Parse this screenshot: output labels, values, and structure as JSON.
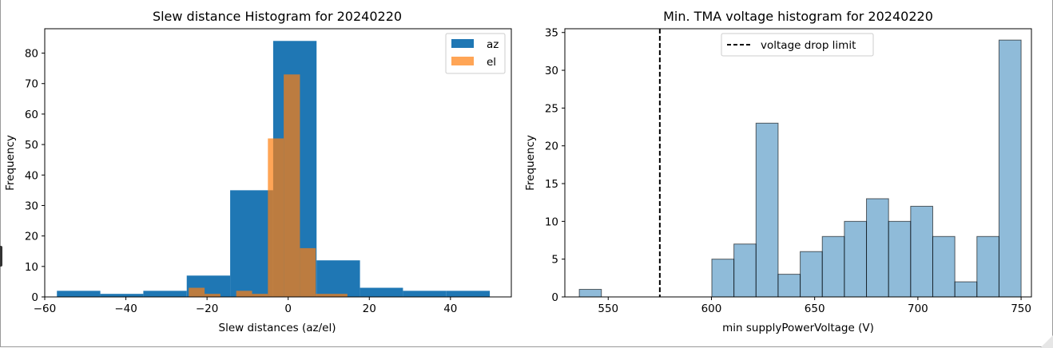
{
  "chart_data": [
    {
      "type": "bar",
      "title": "Slew distance Histogram for 20240220",
      "xlabel": "Slew distances (az/el)",
      "ylabel": "Frequency",
      "xlim": [
        -60,
        55
      ],
      "ylim": [
        0,
        88
      ],
      "xticks": [
        -60,
        -40,
        -20,
        0,
        20,
        40
      ],
      "yticks": [
        0,
        10,
        20,
        30,
        40,
        50,
        60,
        70,
        80
      ],
      "legend": "top-right",
      "series": [
        {
          "name": "az",
          "color": "#1f77b4",
          "opacity": 1,
          "bins": [
            {
              "x0": -57.0,
              "x1": -46.3,
              "y": 2
            },
            {
              "x0": -46.3,
              "x1": -35.7,
              "y": 1
            },
            {
              "x0": -35.7,
              "x1": -25.0,
              "y": 2
            },
            {
              "x0": -25.0,
              "x1": -14.3,
              "y": 7
            },
            {
              "x0": -14.3,
              "x1": -3.7,
              "y": 35
            },
            {
              "x0": -3.7,
              "x1": 7.0,
              "y": 84
            },
            {
              "x0": 7.0,
              "x1": 17.7,
              "y": 12
            },
            {
              "x0": 17.7,
              "x1": 28.3,
              "y": 3
            },
            {
              "x0": 28.3,
              "x1": 39.0,
              "y": 2
            },
            {
              "x0": 39.0,
              "x1": 49.7,
              "y": 2
            }
          ]
        },
        {
          "name": "el",
          "color": "#ff7f0e",
          "opacity": 0.7,
          "bins": [
            {
              "x0": -24.5,
              "x1": -20.6,
              "y": 3
            },
            {
              "x0": -20.6,
              "x1": -16.7,
              "y": 1
            },
            {
              "x0": -16.7,
              "x1": -12.8,
              "y": 0
            },
            {
              "x0": -12.8,
              "x1": -8.9,
              "y": 2
            },
            {
              "x0": -8.9,
              "x1": -5.0,
              "y": 1
            },
            {
              "x0": -5.0,
              "x1": -1.1,
              "y": 52
            },
            {
              "x0": -1.1,
              "x1": 2.9,
              "y": 73
            },
            {
              "x0": 2.9,
              "x1": 6.8,
              "y": 16
            },
            {
              "x0": 6.8,
              "x1": 10.7,
              "y": 1
            },
            {
              "x0": 10.7,
              "x1": 14.6,
              "y": 1
            }
          ]
        }
      ]
    },
    {
      "type": "bar",
      "title": "Min. TMA voltage histogram for 20240220",
      "xlabel": "min supplyPowerVoltage (V)",
      "ylabel": "Frequency",
      "xlim": [
        529,
        755
      ],
      "ylim": [
        0,
        35.5
      ],
      "xticks": [
        550,
        600,
        650,
        700,
        750
      ],
      "yticks": [
        0,
        5,
        10,
        15,
        20,
        25,
        30,
        35
      ],
      "legend": "top-center",
      "series": [
        {
          "name": "",
          "color": "#1f77b4",
          "opacity": 0.5,
          "edgecolor": "#000000",
          "bins": [
            {
              "x0": 536.0,
              "x1": 546.7,
              "y": 1
            },
            {
              "x0": 546.7,
              "x1": 557.4,
              "y": 0
            },
            {
              "x0": 557.4,
              "x1": 568.1,
              "y": 0
            },
            {
              "x0": 568.1,
              "x1": 578.8,
              "y": 0
            },
            {
              "x0": 578.8,
              "x1": 589.5,
              "y": 0
            },
            {
              "x0": 589.5,
              "x1": 600.2,
              "y": 0
            },
            {
              "x0": 600.2,
              "x1": 610.9,
              "y": 5
            },
            {
              "x0": 610.9,
              "x1": 621.6,
              "y": 7
            },
            {
              "x0": 621.6,
              "x1": 632.3,
              "y": 23
            },
            {
              "x0": 632.3,
              "x1": 643.0,
              "y": 3
            },
            {
              "x0": 643.0,
              "x1": 653.7,
              "y": 6
            },
            {
              "x0": 653.7,
              "x1": 664.4,
              "y": 8
            },
            {
              "x0": 664.4,
              "x1": 675.1,
              "y": 10
            },
            {
              "x0": 675.1,
              "x1": 685.8,
              "y": 13
            },
            {
              "x0": 685.8,
              "x1": 696.5,
              "y": 10
            },
            {
              "x0": 696.5,
              "x1": 707.2,
              "y": 12
            },
            {
              "x0": 707.2,
              "x1": 717.9,
              "y": 8
            },
            {
              "x0": 717.9,
              "x1": 728.6,
              "y": 2
            },
            {
              "x0": 728.6,
              "x1": 739.3,
              "y": 8
            },
            {
              "x0": 739.3,
              "x1": 750.0,
              "y": 34
            }
          ]
        }
      ],
      "reference_lines": [
        {
          "name": "voltage drop limit",
          "x": 575,
          "style": "dashed",
          "color": "#000000"
        }
      ]
    }
  ]
}
